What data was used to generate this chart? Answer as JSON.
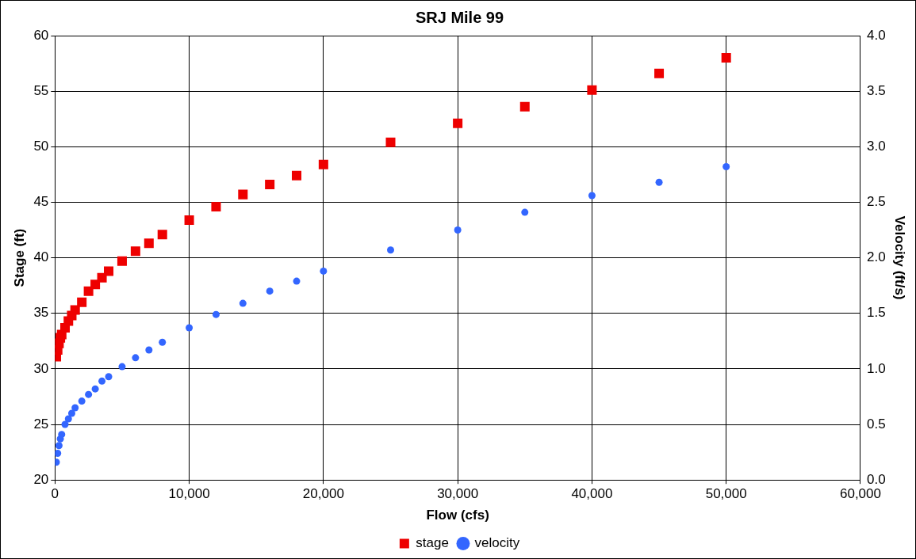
{
  "chart_data": {
    "type": "scatter",
    "title": "SRJ Mile 99",
    "xlabel": "Flow (cfs)",
    "ylabel": "Stage (ft)",
    "y2label": "Velocity (ft/s)",
    "x": [
      100,
      200,
      300,
      400,
      500,
      750,
      1000,
      1250,
      1500,
      2000,
      2500,
      3000,
      3500,
      4000,
      5000,
      6000,
      7000,
      8000,
      10000,
      12000,
      14000,
      16000,
      18000,
      20000,
      25000,
      30000,
      35000,
      40000,
      45000,
      50000
    ],
    "series": [
      {
        "name": "stage",
        "color": "#ee0000",
        "marker": "square",
        "values": [
          31.1,
          31.7,
          32.3,
          32.8,
          33.1,
          33.7,
          34.3,
          34.8,
          35.3,
          36.0,
          37.0,
          37.6,
          38.2,
          38.8,
          39.7,
          40.6,
          41.3,
          42.1,
          43.4,
          44.6,
          45.7,
          46.6,
          47.4,
          48.4,
          50.4,
          52.1,
          53.6,
          55.1,
          56.6,
          58.0
        ]
      },
      {
        "name": "velocity",
        "color": "#3366ff",
        "marker": "circle",
        "axis": "y2",
        "values": [
          0.16,
          0.24,
          0.31,
          0.37,
          0.41,
          0.5,
          0.55,
          0.6,
          0.65,
          0.71,
          0.77,
          0.82,
          0.89,
          0.93,
          1.02,
          1.1,
          1.17,
          1.24,
          1.37,
          1.49,
          1.59,
          1.7,
          1.79,
          1.88,
          2.07,
          2.25,
          2.41,
          2.56,
          2.68,
          2.82
        ]
      }
    ],
    "xlim": [
      0,
      60000
    ],
    "xticks": [
      0,
      {
        "value": 10000,
        "label": "10,000"
      },
      {
        "value": 20000,
        "label": "20,000"
      },
      {
        "value": 30000,
        "label": "30,000"
      },
      {
        "value": 40000,
        "label": "40,000"
      },
      {
        "value": 50000,
        "label": "50,000"
      },
      {
        "value": 60000,
        "label": "60,000"
      }
    ],
    "ylim": [
      20,
      60
    ],
    "yticks": [
      20,
      25,
      30,
      35,
      40,
      45,
      50,
      55,
      60
    ],
    "y2lim": [
      0,
      4
    ],
    "y2ticks": [
      {
        "value": 0,
        "label": "0.0"
      },
      {
        "value": 0.5,
        "label": "0.5"
      },
      {
        "value": 1,
        "label": "1.0"
      },
      {
        "value": 1.5,
        "label": "1.5"
      },
      {
        "value": 2,
        "label": "2.0"
      },
      {
        "value": 2.5,
        "label": "2.5"
      },
      {
        "value": 3,
        "label": "3.0"
      },
      {
        "value": 3.5,
        "label": "3.5"
      },
      {
        "value": 4,
        "label": "4.0"
      }
    ],
    "grid": true,
    "legend": "bottom"
  }
}
